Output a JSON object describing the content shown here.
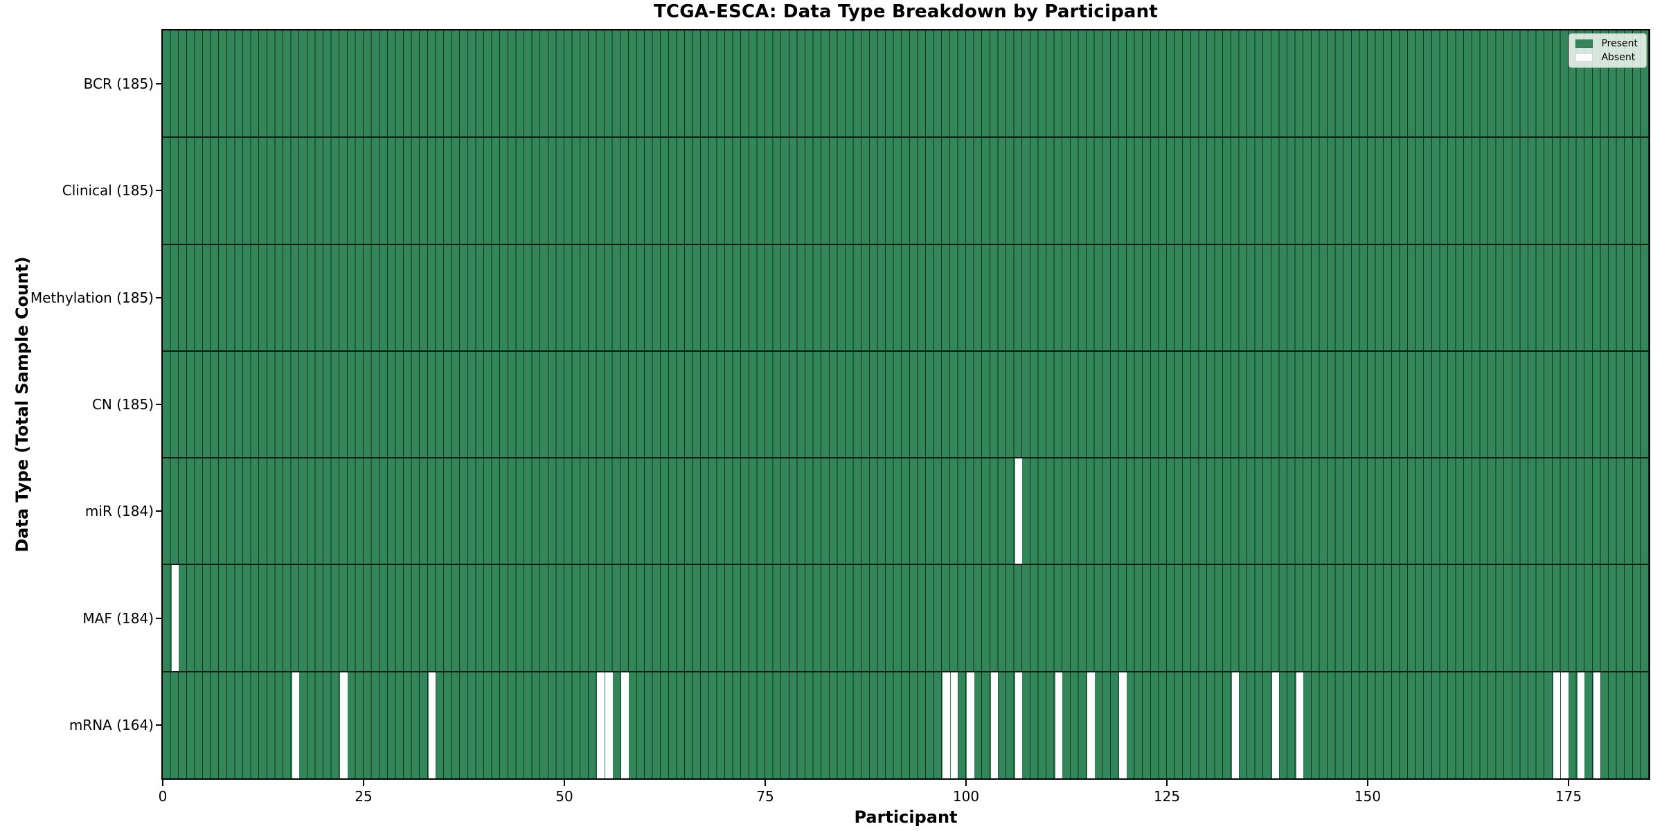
{
  "chart_data": {
    "type": "heatmap",
    "title": "TCGA-ESCA: Data Type Breakdown by Participant",
    "xlabel": "Participant",
    "ylabel": "Data Type (Total Sample Count)",
    "n_participants": 185,
    "x_range": [
      0,
      185
    ],
    "x_ticks": [
      0,
      25,
      50,
      75,
      100,
      125,
      150,
      175
    ],
    "grid": "column boundaries between every participant",
    "legend": {
      "position": "upper right",
      "entries": [
        {
          "label": "Present",
          "color": "#33855A"
        },
        {
          "label": "Absent",
          "color": "#FFFFFF"
        }
      ]
    },
    "colors": {
      "present": "#33855A",
      "absent": "#FFFFFF",
      "grid_line": "#12301F",
      "row_divider": "#0B1C12",
      "frame": "#000000"
    },
    "rows": [
      {
        "label": "BCR",
        "total": 185,
        "tick_label": "BCR (185)",
        "absent_participants": []
      },
      {
        "label": "Clinical",
        "total": 185,
        "tick_label": "Clinical (185)",
        "absent_participants": []
      },
      {
        "label": "Methylation",
        "total": 185,
        "tick_label": "Methylation (185)",
        "absent_participants": []
      },
      {
        "label": "CN",
        "total": 185,
        "tick_label": "CN (185)",
        "absent_participants": []
      },
      {
        "label": "miR",
        "total": 184,
        "tick_label": "miR (184)",
        "absent_participants": [
          106
        ]
      },
      {
        "label": "MAF",
        "total": 184,
        "tick_label": "MAF (184)",
        "absent_participants": [
          1
        ]
      },
      {
        "label": "mRNA",
        "total": 164,
        "tick_label": "mRNA (164)",
        "absent_participants": [
          16,
          22,
          33,
          54,
          55,
          57,
          97,
          98,
          100,
          103,
          106,
          111,
          115,
          119,
          133,
          138,
          141,
          173,
          174,
          176,
          178
        ]
      }
    ]
  }
}
